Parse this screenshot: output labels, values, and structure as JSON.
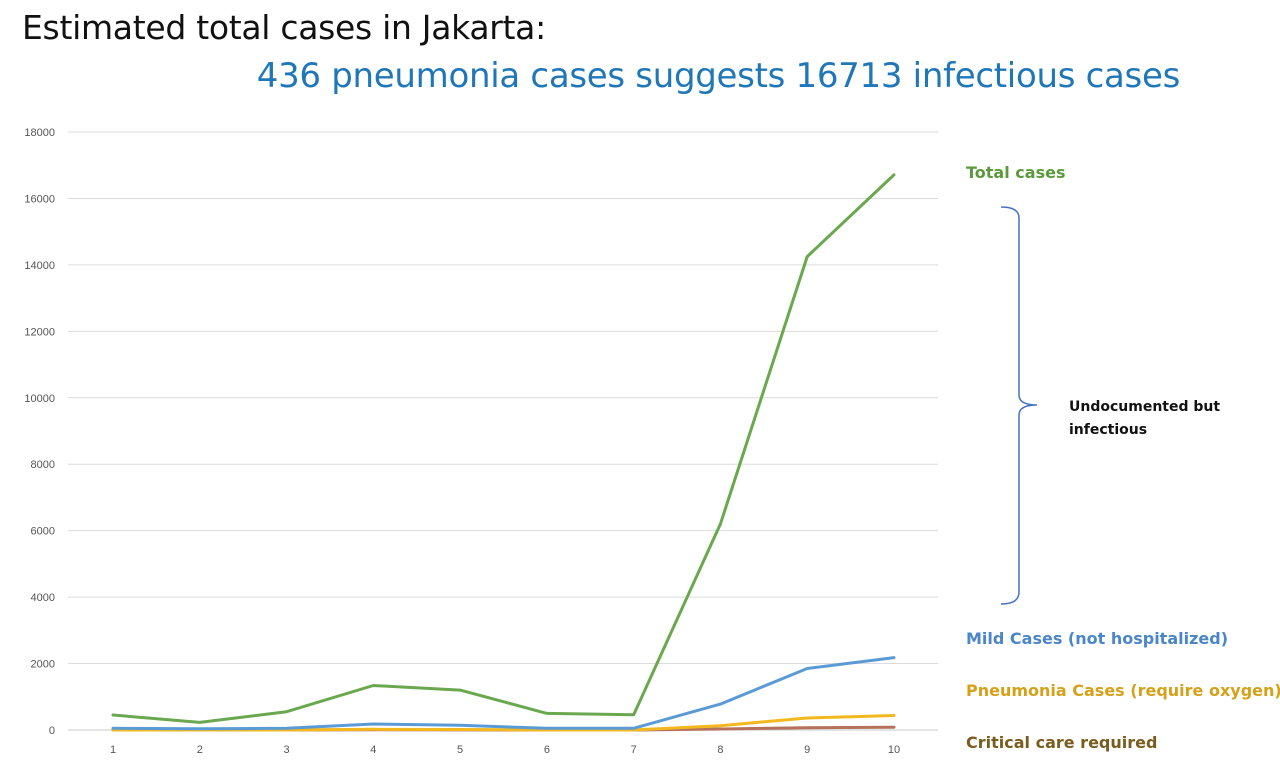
{
  "header": {
    "title": "Estimated total cases in Jakarta:",
    "subtitle": "436 pneumonia cases suggests 16713 infectious cases"
  },
  "chart_data": {
    "type": "line",
    "x": [
      1,
      2,
      3,
      4,
      5,
      6,
      7,
      8,
      9,
      10
    ],
    "ylim": [
      0,
      18000
    ],
    "yticks": [
      0,
      2000,
      4000,
      6000,
      8000,
      10000,
      12000,
      14000,
      16000,
      18000
    ],
    "grid": true,
    "legend_position": "right",
    "series": [
      {
        "name": "Total cases",
        "color": "#6aa84f",
        "label_color": "#5b9a3c",
        "values": [
          450,
          230,
          550,
          1340,
          1200,
          500,
          460,
          6200,
          14250,
          16713
        ]
      },
      {
        "name": "Mild Cases (not hospitalized)",
        "color": "#5b9bd5",
        "label_color": "#4a86c8",
        "values": [
          50,
          40,
          50,
          180,
          140,
          50,
          50,
          780,
          1850,
          2180
        ]
      },
      {
        "name": "Pneumonia Cases (require oxygen)",
        "color": "#f2b81d",
        "label_color": "#d6a11a",
        "values": [
          0,
          0,
          0,
          20,
          15,
          0,
          0,
          130,
          360,
          436
        ]
      },
      {
        "name": "Critical care required",
        "color": "#b5715a",
        "label_color": "#7a5c1f",
        "values": [
          0,
          0,
          0,
          5,
          4,
          0,
          0,
          30,
          70,
          85
        ]
      }
    ],
    "annotation": {
      "lines": [
        "Undocumented but",
        "infectious"
      ],
      "color": "#4472c4"
    }
  }
}
